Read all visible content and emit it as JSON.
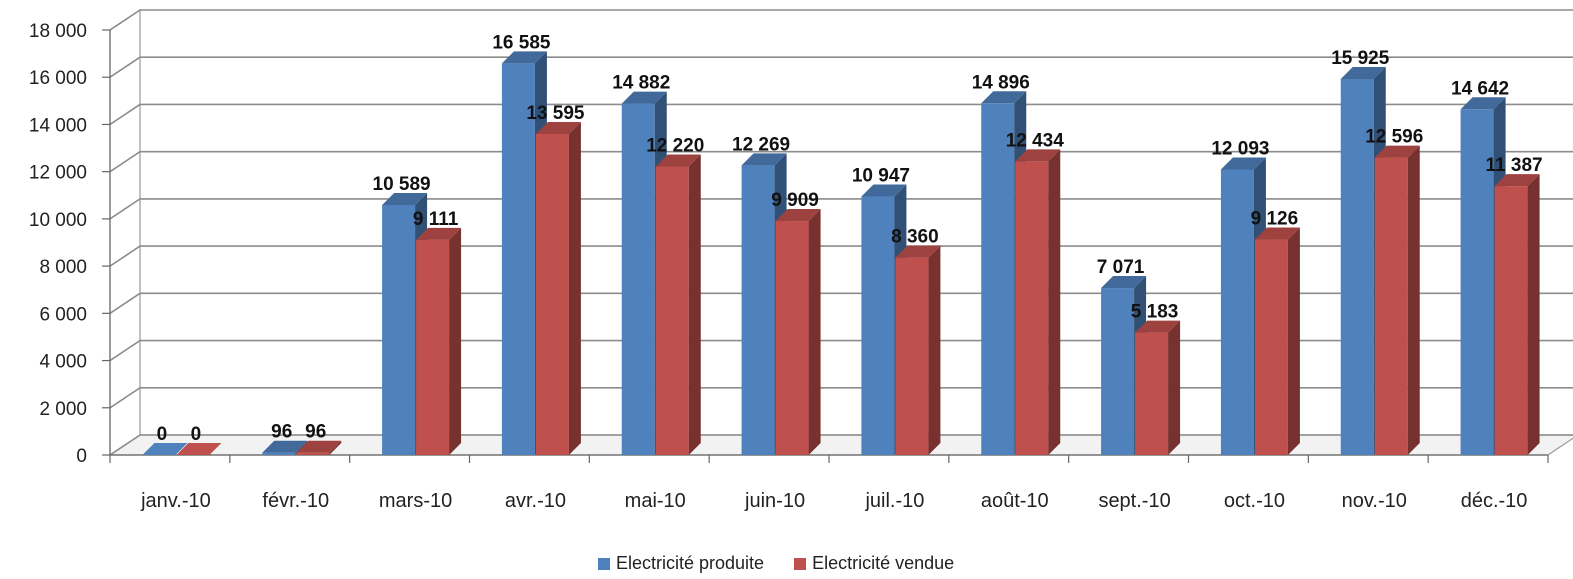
{
  "chart_data": {
    "type": "bar",
    "title": "",
    "xlabel": "",
    "ylabel": "",
    "ylim": [
      0,
      18000
    ],
    "y_ticks": [
      "0",
      "2 000",
      "4 000",
      "6 000",
      "8 000",
      "10 000",
      "12 000",
      "14 000",
      "16 000",
      "18 000"
    ],
    "categories": [
      "janv.-10",
      "févr.-10",
      "mars-10",
      "avr.-10",
      "mai-10",
      "juin-10",
      "juil.-10",
      "août-10",
      "sept.-10",
      "oct.-10",
      "nov.-10",
      "déc.-10"
    ],
    "series": [
      {
        "name": "Electricité produite",
        "color": "#4F81BD",
        "values": [
          0,
          96,
          10589,
          16585,
          14882,
          12269,
          10947,
          14896,
          7071,
          12093,
          15925,
          14642
        ],
        "labels": [
          "0",
          "96",
          "10 589",
          "16 585",
          "14 882",
          "12 269",
          "10 947",
          "14 896",
          "7 071",
          "12 093",
          "15 925",
          "14 642"
        ]
      },
      {
        "name": "Electricité vendue",
        "color": "#C0504D",
        "values": [
          0,
          96,
          9111,
          13595,
          12220,
          9909,
          8360,
          12434,
          5183,
          9126,
          12596,
          11387
        ],
        "labels": [
          "0",
          "96",
          "9 111",
          "13 595",
          "12 220",
          "9 909",
          "8 360",
          "12 434",
          "5 183",
          "9 126",
          "12 596",
          "11 387"
        ]
      }
    ],
    "grid": true,
    "legend_position": "bottom"
  }
}
